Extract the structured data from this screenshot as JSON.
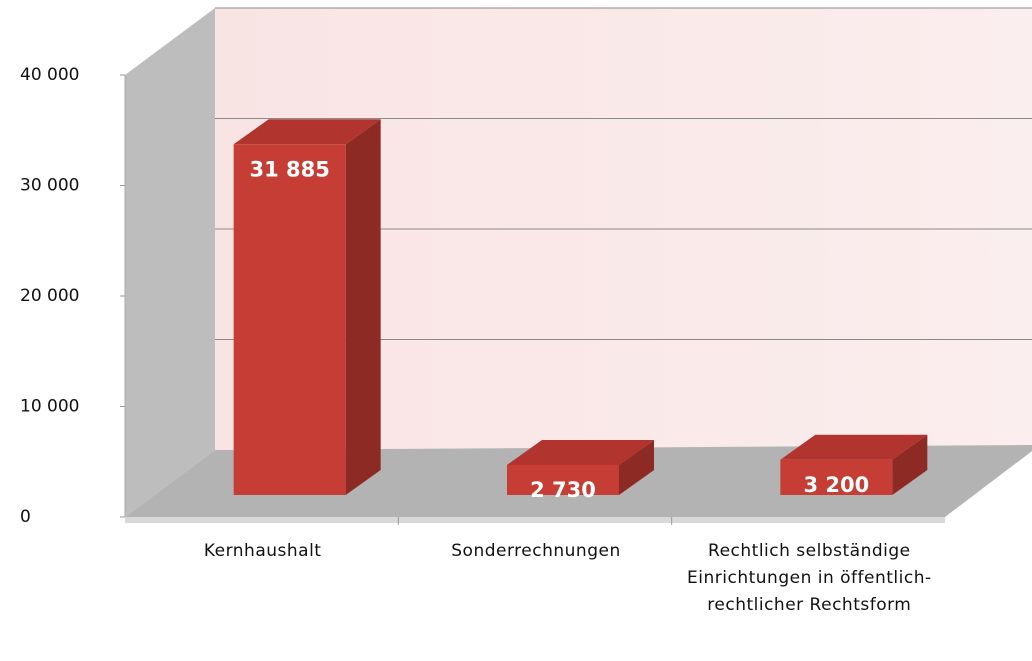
{
  "chart_data": {
    "type": "bar",
    "categories": [
      "Kernhaushalt",
      "Sonderrechnungen",
      "Rechtlich selbständige Einrichtungen in öffentlich-rechtlicher Rechtsform"
    ],
    "values": [
      31885,
      2730,
      3200
    ],
    "value_labels": [
      "31 885",
      "2 730",
      "3 200"
    ],
    "color": "#c63d36",
    "ylim": [
      0,
      40000
    ],
    "yticks": [
      0,
      {
        "value": 10000,
        "label": "10 000"
      },
      {
        "value": 20000,
        "label": "20 000"
      },
      {
        "value": 30000,
        "label": "30 000"
      },
      {
        "value": 40000,
        "label": "40 000"
      }
    ],
    "grid": true
  }
}
